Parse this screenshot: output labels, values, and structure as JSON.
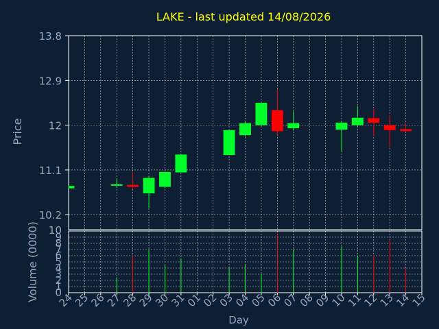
{
  "colors": {
    "background": "#0f1f33",
    "title": "#ffff00",
    "axis_text": "#8fa8c8",
    "grid": "#ffffff",
    "up": "#00ff2a",
    "down": "#ff0000"
  },
  "chart_data": [
    {
      "type": "candlestick",
      "title": "LAKE - last updated 14/08/2026",
      "ylabel": "Price",
      "ylim": [
        9.9,
        13.8
      ],
      "yticks": [
        "13.8",
        "12.9",
        "12",
        "11.1",
        "10.2"
      ],
      "ytick_values": [
        13.8,
        12.9,
        12.0,
        11.1,
        10.2
      ],
      "grid": true,
      "days": [
        "24",
        "25",
        "26",
        "27",
        "28",
        "29",
        "30",
        "31",
        "01",
        "02",
        "03",
        "04",
        "05",
        "06",
        "07",
        "08",
        "09",
        "10",
        "11",
        "12",
        "13",
        "14",
        "15"
      ],
      "candles": [
        {
          "day": "24",
          "open": 10.73,
          "high": 10.78,
          "low": 10.73,
          "close": 10.78
        },
        {
          "day": "27",
          "open": 10.79,
          "high": 10.93,
          "low": 10.74,
          "close": 10.81
        },
        {
          "day": "28",
          "open": 10.8,
          "high": 11.05,
          "low": 10.72,
          "close": 10.76
        },
        {
          "day": "29",
          "open": 10.63,
          "high": 10.97,
          "low": 10.34,
          "close": 10.94
        },
        {
          "day": "30",
          "open": 10.76,
          "high": 11.06,
          "low": 10.73,
          "close": 11.06
        },
        {
          "day": "31",
          "open": 11.05,
          "high": 11.42,
          "low": 11.05,
          "close": 11.41
        },
        {
          "day": "03",
          "open": 11.4,
          "high": 11.91,
          "low": 11.4,
          "close": 11.9
        },
        {
          "day": "04",
          "open": 11.8,
          "high": 12.08,
          "low": 11.77,
          "close": 12.04
        },
        {
          "day": "05",
          "open": 12.0,
          "high": 12.45,
          "low": 11.98,
          "close": 12.45
        },
        {
          "day": "06",
          "open": 12.3,
          "high": 12.72,
          "low": 11.8,
          "close": 11.88
        },
        {
          "day": "07",
          "open": 11.94,
          "high": 12.28,
          "low": 11.89,
          "close": 12.04
        },
        {
          "day": "10",
          "open": 11.91,
          "high": 12.08,
          "low": 11.46,
          "close": 12.05
        },
        {
          "day": "11",
          "open": 12.0,
          "high": 12.38,
          "low": 11.98,
          "close": 12.15
        },
        {
          "day": "12",
          "open": 12.14,
          "high": 12.33,
          "low": 11.78,
          "close": 12.05
        },
        {
          "day": "13",
          "open": 12.0,
          "high": 12.2,
          "low": 11.55,
          "close": 11.9
        },
        {
          "day": "14",
          "open": 11.92,
          "high": 12.05,
          "low": 11.88,
          "close": 11.88
        }
      ]
    },
    {
      "type": "bar",
      "xlabel": "Day",
      "ylabel": "Volume (0000)",
      "ylim": [
        0,
        10
      ],
      "yticks": [
        "0",
        "1",
        "2",
        "3",
        "4",
        "5",
        "6",
        "7",
        "8",
        "9"
      ],
      "grid": true,
      "bars": [
        {
          "day": "27",
          "value": 2.5,
          "direction": "up"
        },
        {
          "day": "28",
          "value": 6.0,
          "direction": "down"
        },
        {
          "day": "29",
          "value": 7.0,
          "direction": "up"
        },
        {
          "day": "30",
          "value": 4.5,
          "direction": "up"
        },
        {
          "day": "31",
          "value": 5.5,
          "direction": "up"
        },
        {
          "day": "03",
          "value": 4.0,
          "direction": "up"
        },
        {
          "day": "04",
          "value": 4.5,
          "direction": "up"
        },
        {
          "day": "05",
          "value": 3.0,
          "direction": "up"
        },
        {
          "day": "06",
          "value": 9.5,
          "direction": "down"
        },
        {
          "day": "07",
          "value": 7.0,
          "direction": "up"
        },
        {
          "day": "10",
          "value": 7.5,
          "direction": "up"
        },
        {
          "day": "11",
          "value": 6.0,
          "direction": "up"
        },
        {
          "day": "12",
          "value": 6.0,
          "direction": "down"
        },
        {
          "day": "13",
          "value": 8.5,
          "direction": "down"
        },
        {
          "day": "14",
          "value": 4.0,
          "direction": "down"
        }
      ]
    }
  ]
}
